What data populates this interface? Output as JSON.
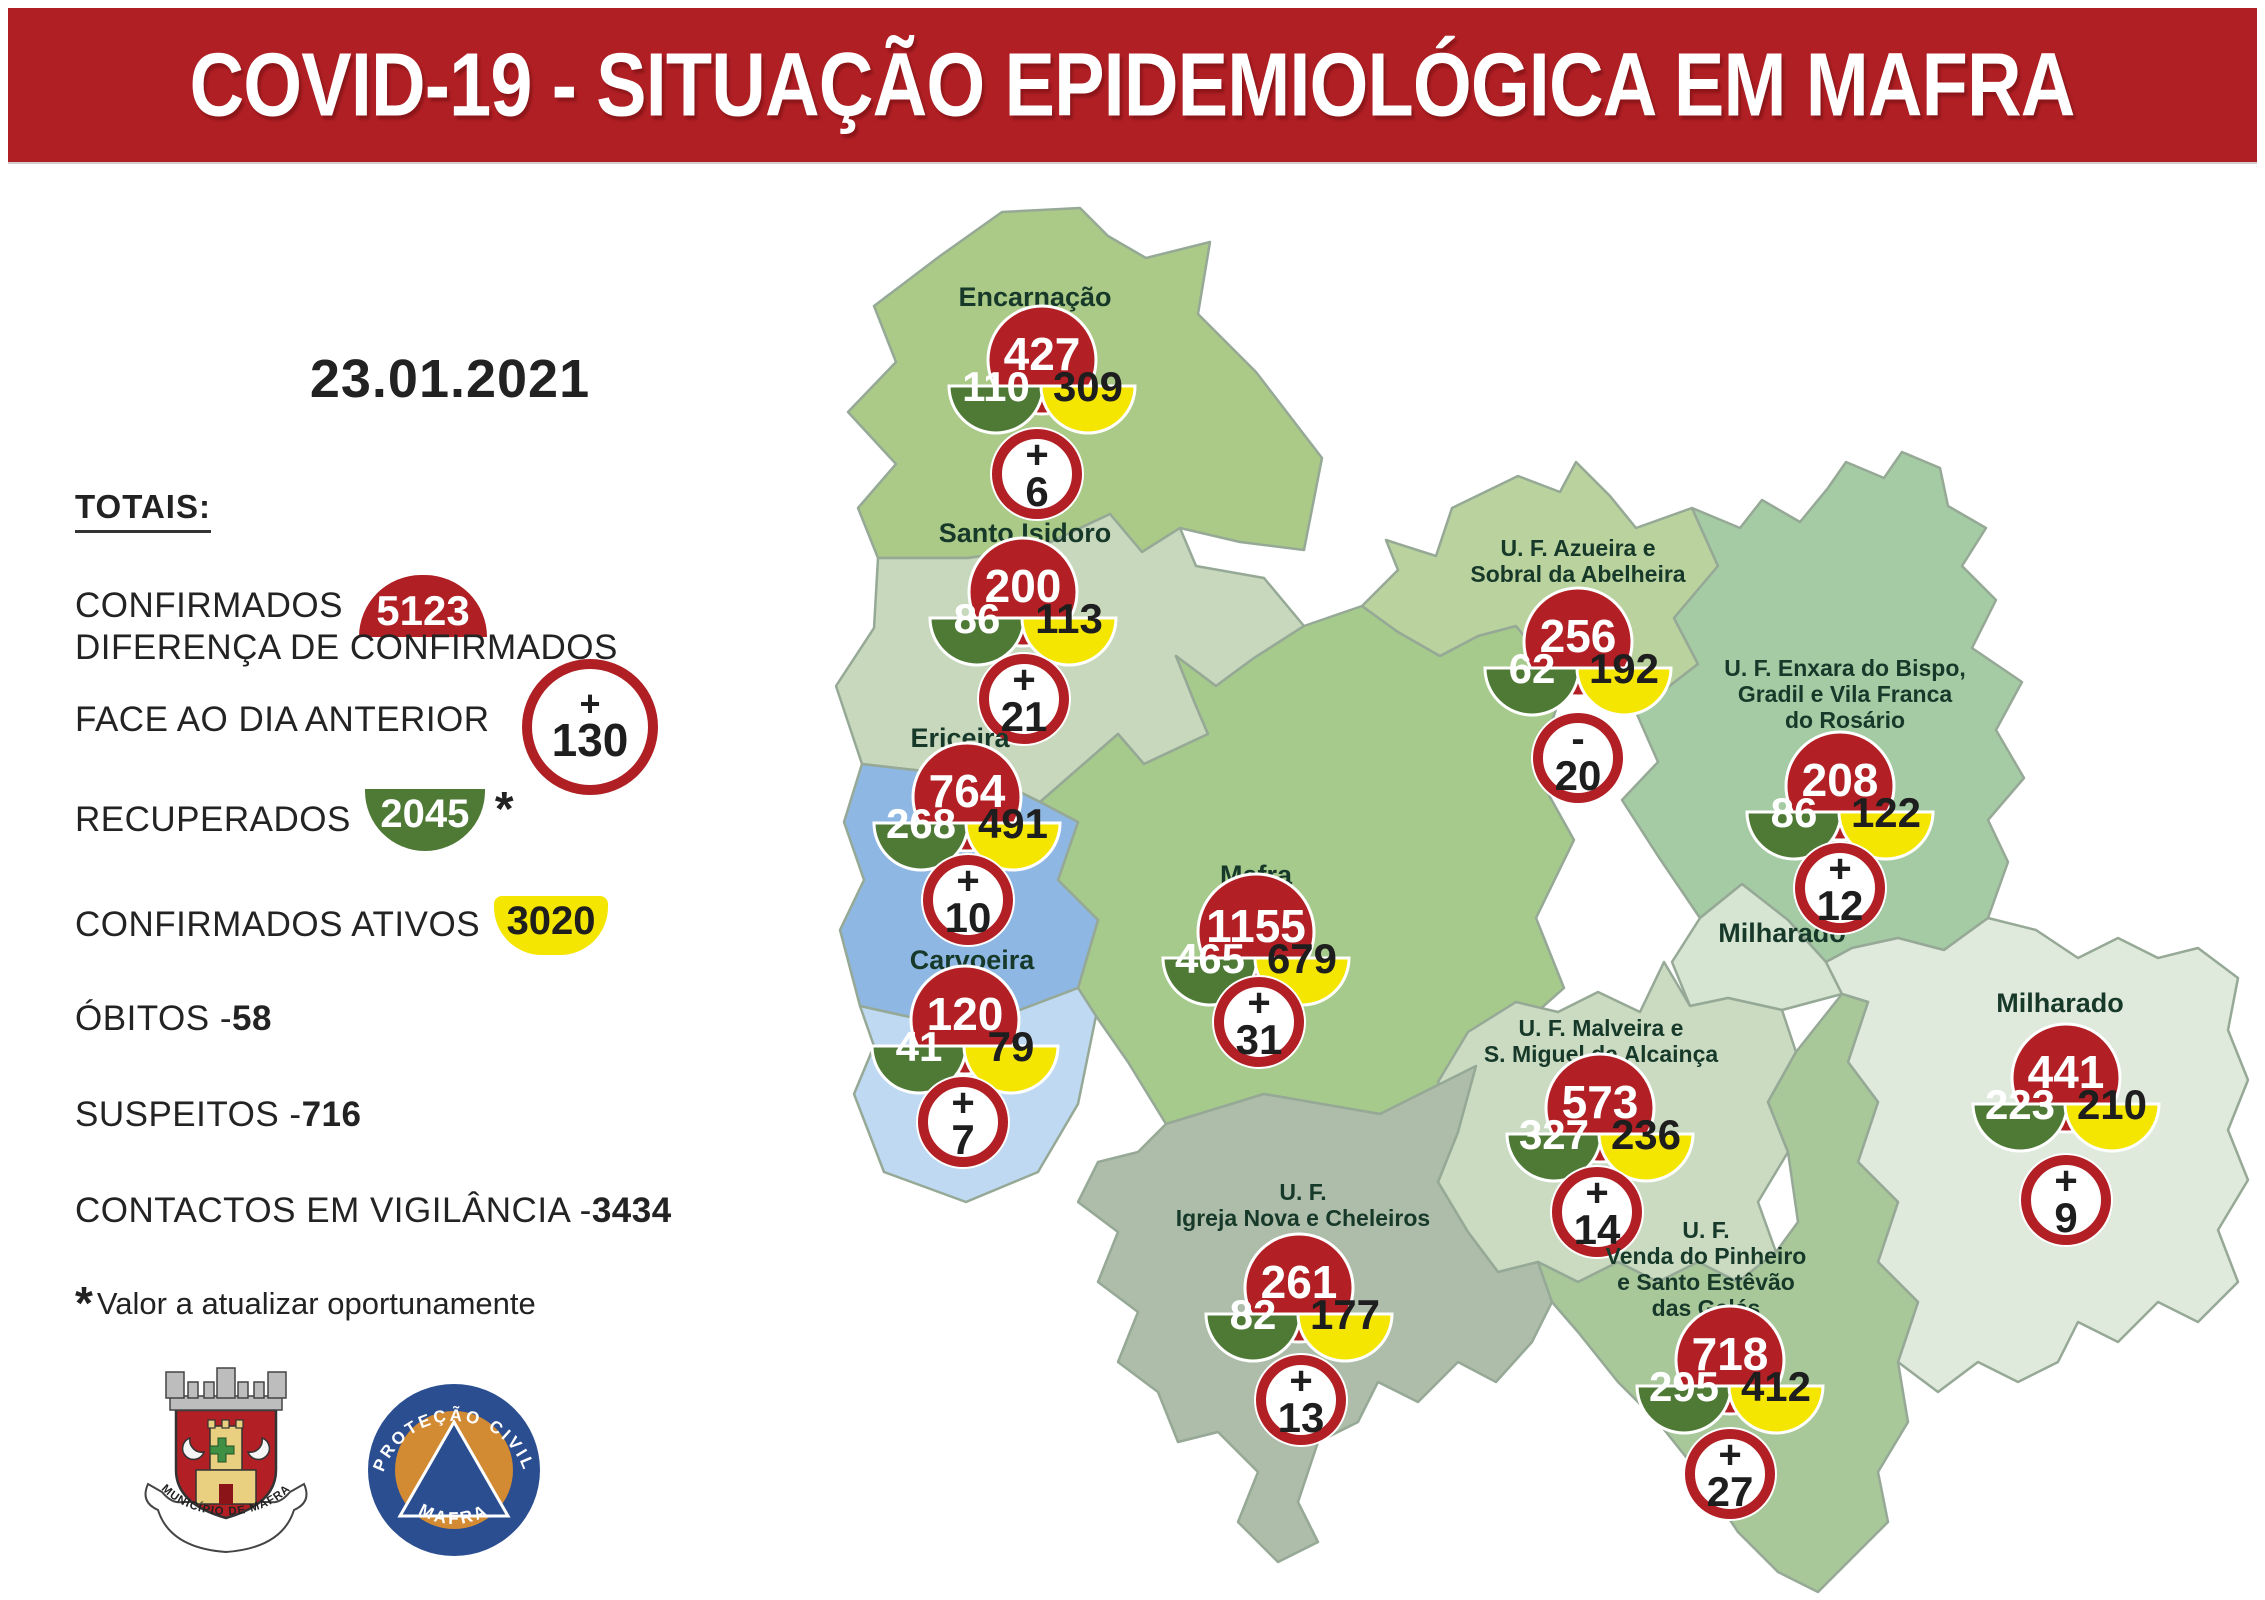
{
  "header": {
    "title": "COVID-19 - SITUAÇÃO EPIDEMIOLÓGICA EM MAFRA"
  },
  "sidebar": {
    "date": "23.01.2021",
    "totals_label": "TOTAIS:",
    "confirmados_label": "CONFIRMADOS",
    "confirmados_value": "5123",
    "diferenca_line1": "DIFERENÇA DE CONFIRMADOS",
    "diferenca_line2": "FACE AO DIA ANTERIOR",
    "diferenca_sign": "+",
    "diferenca_value": "130",
    "recuperados_label": "RECUPERADOS",
    "recuperados_value": "2045",
    "recuperados_marker": "*",
    "ativos_label": "CONFIRMADOS ATIVOS",
    "ativos_value": "3020",
    "obitos_label": "ÓBITOS - ",
    "obitos_value": "58",
    "suspeitos_label": "SUSPEITOS - ",
    "suspeitos_value": "716",
    "contactos_label": "CONTACTOS EM VIGILÂNCIA - ",
    "contactos_value": "3434",
    "footnote_marker": "*",
    "footnote_text": "Valor a atualizar oportunamente"
  },
  "logos": {
    "municipio_text": "MUNICÍPIO DE MAFRA",
    "protecao_top": "PROTEÇÃO CIVIL",
    "protecao_bottom": "MAFRA"
  },
  "colors": {
    "header_red": "#b01f24",
    "badge_red": "#b22025",
    "badge_green": "#4f7a36",
    "badge_yellow": "#f4e600",
    "map_label": "#17392a"
  },
  "map": {
    "exclave_label": "Milharado",
    "regions": [
      {
        "id": "encarnacao",
        "name_lines": [
          "Encarnação"
        ],
        "confirmed": "427",
        "recovered": "110",
        "active": "309",
        "change_sign": "+",
        "change_value": "6",
        "fill": "#abc987"
      },
      {
        "id": "santo_isidoro",
        "name_lines": [
          "Santo Isidoro"
        ],
        "confirmed": "200",
        "recovered": "86",
        "active": "113",
        "change_sign": "+",
        "change_value": "21",
        "fill": "#c8d8bd"
      },
      {
        "id": "ericeira",
        "name_lines": [
          "Ericeira"
        ],
        "confirmed": "764",
        "recovered": "268",
        "active": "491",
        "change_sign": "+",
        "change_value": "10",
        "fill": "#8fb7e3"
      },
      {
        "id": "carvoeira",
        "name_lines": [
          "Carvoeira"
        ],
        "confirmed": "120",
        "recovered": "41",
        "active": "79",
        "change_sign": "+",
        "change_value": "7",
        "fill": "#bfd9f2"
      },
      {
        "id": "mafra",
        "name_lines": [
          "Mafra"
        ],
        "confirmed": "1155",
        "recovered": "465",
        "active": "679",
        "change_sign": "+",
        "change_value": "31",
        "fill": "#a6c98c"
      },
      {
        "id": "azueira",
        "name_lines": [
          "U. F. Azueira e",
          "Sobral da Abelheira"
        ],
        "confirmed": "256",
        "recovered": "62",
        "active": "192",
        "change_sign": "-",
        "change_value": "20",
        "fill": "#b9d29e"
      },
      {
        "id": "enxara",
        "name_lines": [
          "U. F. Enxara do Bispo,",
          "Gradil e Vila Franca",
          "do Rosário"
        ],
        "confirmed": "208",
        "recovered": "86",
        "active": "122",
        "change_sign": "+",
        "change_value": "12",
        "fill": "#a5cba5"
      },
      {
        "id": "milharado",
        "name_lines": [
          "Milharado"
        ],
        "confirmed": "441",
        "recovered": "223",
        "active": "210",
        "change_sign": "+",
        "change_value": "9",
        "fill": "#dfe9dc"
      },
      {
        "id": "malveira",
        "name_lines": [
          "U. F. Malveira e",
          "S. Miguel da Alcainça"
        ],
        "confirmed": "573",
        "recovered": "327",
        "active": "236",
        "change_sign": "+",
        "change_value": "14",
        "fill": "#cadbc2"
      },
      {
        "id": "igreja_nova",
        "name_lines": [
          "U. F.",
          "Igreja Nova e Cheleiros"
        ],
        "confirmed": "261",
        "recovered": "82",
        "active": "177",
        "change_sign": "+",
        "change_value": "13",
        "fill": "#adbda9"
      },
      {
        "id": "venda_pinheiro",
        "name_lines": [
          "U. F.",
          "Venda do Pinheiro",
          "e Santo Estêvão",
          "das Galés"
        ],
        "confirmed": "718",
        "recovered": "295",
        "active": "412",
        "change_sign": "+",
        "change_value": "27",
        "fill": "#a8c89a"
      }
    ]
  }
}
